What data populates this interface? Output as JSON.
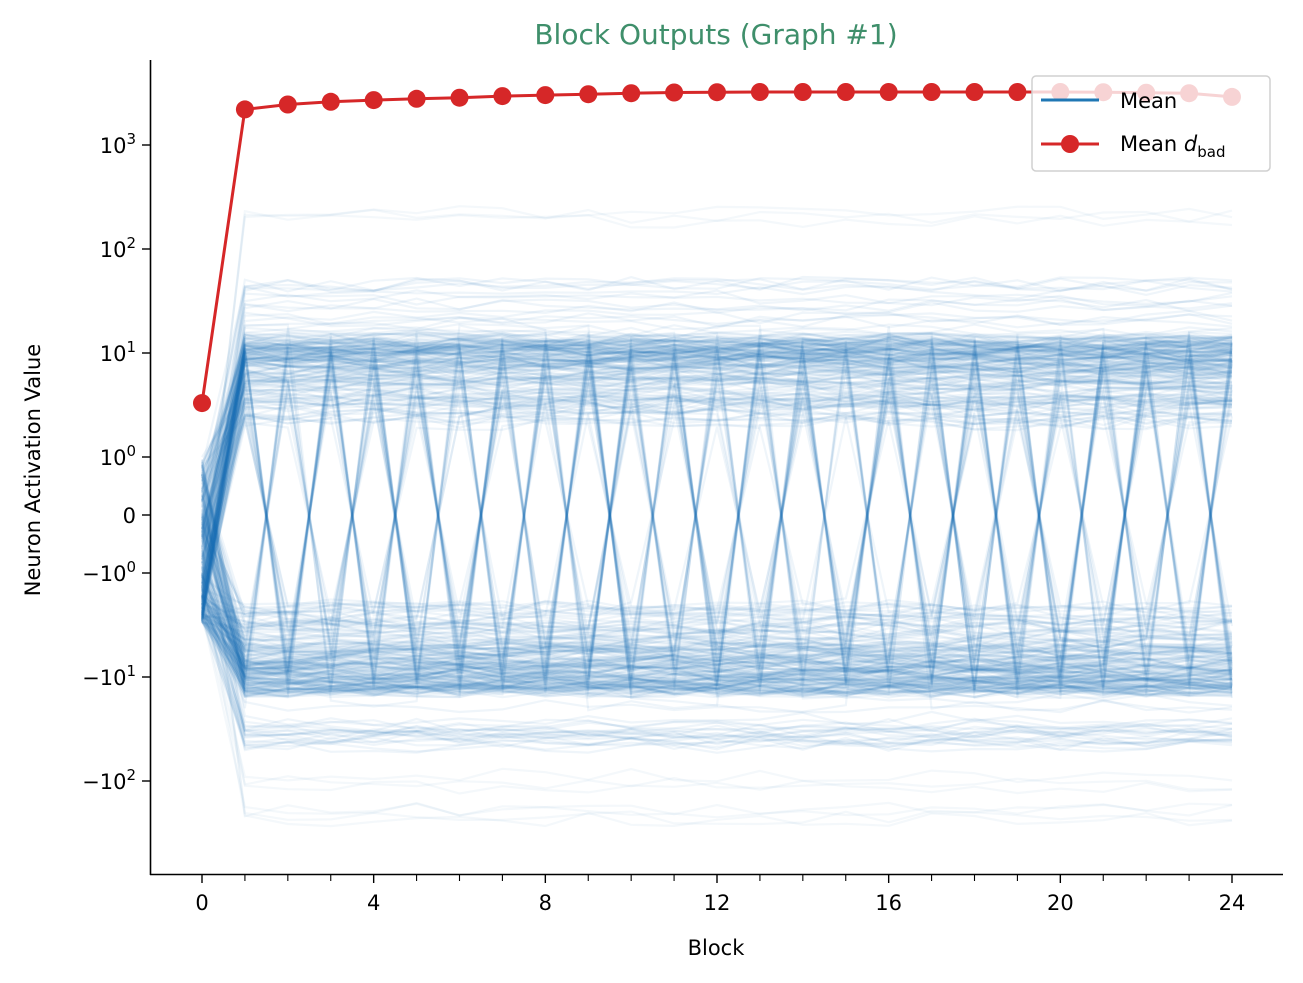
{
  "chart_data": {
    "type": "line",
    "title": "Block Outputs (Graph #1)",
    "xlabel": "Block",
    "ylabel": "Neuron Activation Value",
    "yscale": "symlog",
    "xlim": [
      -1.2,
      25.2
    ],
    "ylim": [
      -400,
      3000
    ],
    "x_ticks": [
      0,
      4,
      8,
      12,
      16,
      20,
      24
    ],
    "x_tick_labels": [
      "0",
      "4",
      "8",
      "12",
      "16",
      "20",
      "24"
    ],
    "x_minor_ticks": [
      1,
      2,
      3,
      5,
      6,
      7,
      9,
      10,
      11,
      13,
      14,
      15,
      17,
      18,
      19,
      21,
      22,
      23
    ],
    "y_ticks": [
      {
        "value": 1000,
        "base": "10",
        "exp": "3",
        "sign": ""
      },
      {
        "value": 100,
        "base": "10",
        "exp": "2",
        "sign": ""
      },
      {
        "value": 10,
        "base": "10",
        "exp": "1",
        "sign": ""
      },
      {
        "value": 1,
        "base": "10",
        "exp": "0",
        "sign": ""
      },
      {
        "value": 0,
        "base": "0",
        "exp": "",
        "sign": ""
      },
      {
        "value": -1,
        "base": "10",
        "exp": "0",
        "sign": "−"
      },
      {
        "value": -10,
        "base": "10",
        "exp": "1",
        "sign": "−"
      },
      {
        "value": -100,
        "base": "10",
        "exp": "2",
        "sign": "−"
      }
    ],
    "grid": false,
    "legend_position": "upper right",
    "x": [
      0,
      1,
      2,
      3,
      4,
      5,
      6,
      7,
      8,
      9,
      10,
      11,
      12,
      13,
      14,
      15,
      16,
      17,
      18,
      19,
      20,
      21,
      22,
      23,
      24
    ],
    "series": [
      {
        "name": "Mean",
        "color": "#1f77b4",
        "style": "line",
        "note": "Many faint per-neuron traces (alpha ~0.05); bulk spans roughly -15 to +15, outliers to about -250 and +180. At block 0 traces are concentrated between about -3 and +1.",
        "values": null
      },
      {
        "name": "Mean d_bad",
        "color": "#d62728",
        "style": "line+marker",
        "values": [
          3.3,
          2200,
          2450,
          2600,
          2700,
          2780,
          2850,
          2950,
          3020,
          3080,
          3150,
          3200,
          3220,
          3230,
          3230,
          3230,
          3230,
          3230,
          3230,
          3230,
          3230,
          3220,
          3180,
          3150,
          2900
        ]
      }
    ]
  },
  "legend": {
    "items": [
      {
        "label": "Mean",
        "color": "#1f77b4"
      },
      {
        "label": "Mean ",
        "math": "d",
        "sub": "bad",
        "color": "#d62728"
      }
    ]
  }
}
